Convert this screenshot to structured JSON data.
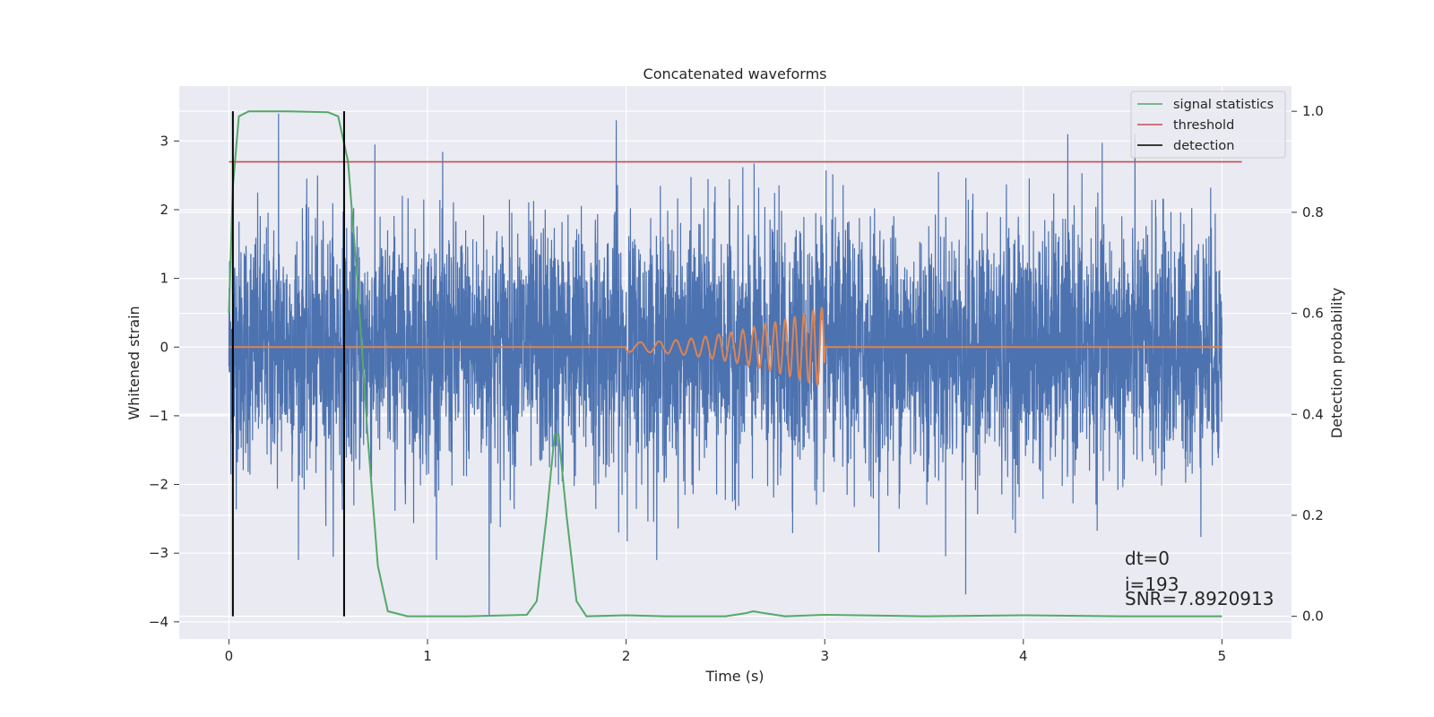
{
  "chart_data": {
    "type": "line",
    "title": "Concatenated waveforms",
    "xlabel": "Time (s)",
    "ylabel": "Whitened strain",
    "ylabel_right": "Detection probability",
    "xlim": [
      -0.25,
      5.35
    ],
    "ylim": [
      -4.25,
      3.8
    ],
    "ylim_right": [
      -0.045,
      1.05
    ],
    "x_ticks": [
      0,
      1,
      2,
      3,
      4,
      5
    ],
    "x_tick_labels": [
      "0",
      "1",
      "2",
      "3",
      "4",
      "5"
    ],
    "y_ticks": [
      3,
      2,
      1,
      0,
      -1,
      -2,
      -3,
      -4
    ],
    "y_tick_labels": [
      "3",
      "2",
      "1",
      "0",
      "−1",
      "−2",
      "−3",
      "−4"
    ],
    "y_right_ticks": [
      1.0,
      0.8,
      0.6,
      0.4,
      0.2,
      0.0
    ],
    "y_right_tick_labels": [
      "1.0",
      "0.8",
      "0.6",
      "0.4",
      "0.2",
      "0.0"
    ],
    "grid": true,
    "legend_position": "top-right",
    "legend": [
      "signal statistics",
      "threshold",
      "detection"
    ],
    "series": [
      {
        "kind": "noise",
        "axis": "left",
        "color": "#4c72b0",
        "x_range": [
          0,
          5
        ],
        "points": 5000,
        "typical_range": [
          -2.0,
          2.0
        ],
        "peaks": [
          {
            "x": 0.25,
            "y": 3.4
          },
          {
            "x": 1.95,
            "y": 3.3
          },
          {
            "x": 1.31,
            "y": -3.9
          },
          {
            "x": 3.71,
            "y": -3.6
          }
        ]
      },
      {
        "kind": "injected_signal",
        "axis": "left",
        "color": "#dd8452",
        "x_range": [
          0,
          5
        ],
        "chirp_start": 2.0,
        "chirp_end": 3.0,
        "amplitude_start": 0.07,
        "amplitude_end": 0.6,
        "cycles": 16
      },
      {
        "name": "signal statistics",
        "axis": "right",
        "color": "#55a868",
        "x": [
          0,
          0.02,
          0.05,
          0.1,
          0.3,
          0.5,
          0.55,
          0.6,
          0.65,
          0.7,
          0.75,
          0.8,
          0.9,
          1.2,
          1.5,
          1.55,
          1.6,
          1.64,
          1.66,
          1.7,
          1.75,
          1.8,
          2.0,
          2.2,
          2.5,
          2.6,
          2.64,
          2.7,
          2.8,
          3.0,
          3.5,
          4.0,
          4.5,
          5.0
        ],
        "y": [
          0.6,
          0.85,
          0.99,
          1.0,
          1.0,
          0.998,
          0.99,
          0.9,
          0.65,
          0.35,
          0.1,
          0.01,
          0.0,
          0.0,
          0.003,
          0.03,
          0.2,
          0.36,
          0.36,
          0.2,
          0.03,
          0.0,
          0.002,
          0.0,
          0.0,
          0.006,
          0.01,
          0.006,
          0.0,
          0.003,
          0.0,
          0.002,
          0.0,
          0.0
        ]
      },
      {
        "name": "threshold",
        "axis": "right",
        "color": "#c44e52",
        "x": [
          0,
          5.1
        ],
        "y": [
          0.9,
          0.9
        ]
      },
      {
        "name": "detection",
        "axis": "right",
        "color": "#000000",
        "x": [
          0.02,
          0.58
        ],
        "y_range": [
          0.0,
          1.0
        ]
      }
    ],
    "annotations": [
      "dt=0",
      "i=193",
      "SNR=7.8920913"
    ]
  }
}
